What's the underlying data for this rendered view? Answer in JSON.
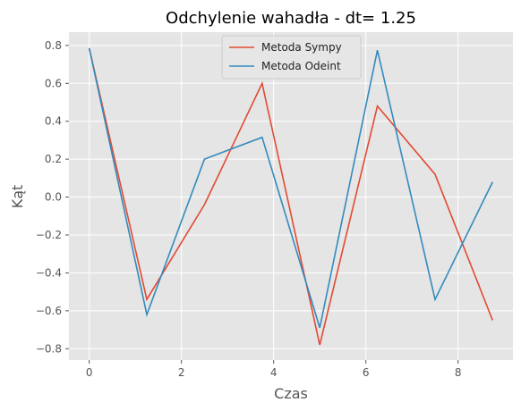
{
  "chart_data": {
    "type": "line",
    "title": "Odchylenie wahadła - dt= 1.25",
    "xlabel": "Czas",
    "ylabel": "Kąt",
    "xlim": [
      -0.44,
      9.19
    ],
    "ylim": [
      -0.86,
      0.87
    ],
    "xticks": [
      0,
      2,
      4,
      6,
      8
    ],
    "yticks": [
      -0.8,
      -0.6,
      -0.4,
      -0.2,
      0.0,
      0.2,
      0.4,
      0.6,
      0.8
    ],
    "grid": true,
    "legend": "top-center",
    "x": [
      0,
      1.25,
      2.5,
      3.75,
      5.0,
      6.25,
      7.5,
      8.75
    ],
    "series": [
      {
        "name": "Metoda Sympy",
        "color": "#E24A33",
        "values": [
          0.785,
          -0.54,
          -0.04,
          0.6,
          -0.78,
          0.48,
          0.12,
          -0.65
        ]
      },
      {
        "name": "Metoda Odeint",
        "color": "#348ABD",
        "values": [
          0.785,
          -0.62,
          0.2,
          0.315,
          -0.69,
          0.775,
          -0.54,
          0.08
        ]
      }
    ]
  }
}
